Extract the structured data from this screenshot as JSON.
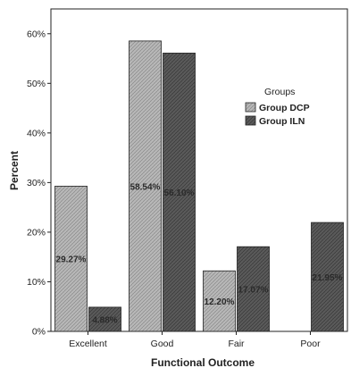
{
  "chart_data": {
    "type": "bar",
    "xlabel": "Functional Outcome",
    "ylabel": "Percent",
    "ylim": [
      0,
      65
    ],
    "yticks": [
      0,
      10,
      20,
      30,
      40,
      50,
      60
    ],
    "ytick_labels": [
      "0%",
      "10%",
      "20%",
      "30%",
      "40%",
      "50%",
      "60%"
    ],
    "categories": [
      "Excellent",
      "Good",
      "Fair",
      "Poor"
    ],
    "series": [
      {
        "name": "Group DCP",
        "values": [
          29.27,
          58.54,
          12.2,
          0
        ],
        "labels": [
          "29.27%",
          "58.54%",
          "12.20%",
          ""
        ],
        "color": "#b4b4b4"
      },
      {
        "name": "Group ILN",
        "values": [
          4.88,
          56.1,
          17.07,
          21.95
        ],
        "labels": [
          "4.88%",
          "56.10%",
          "17.07%",
          "21.95%"
        ],
        "color": "#555555"
      }
    ],
    "legend": {
      "title": "Groups",
      "placement": "right"
    },
    "grid": false
  }
}
